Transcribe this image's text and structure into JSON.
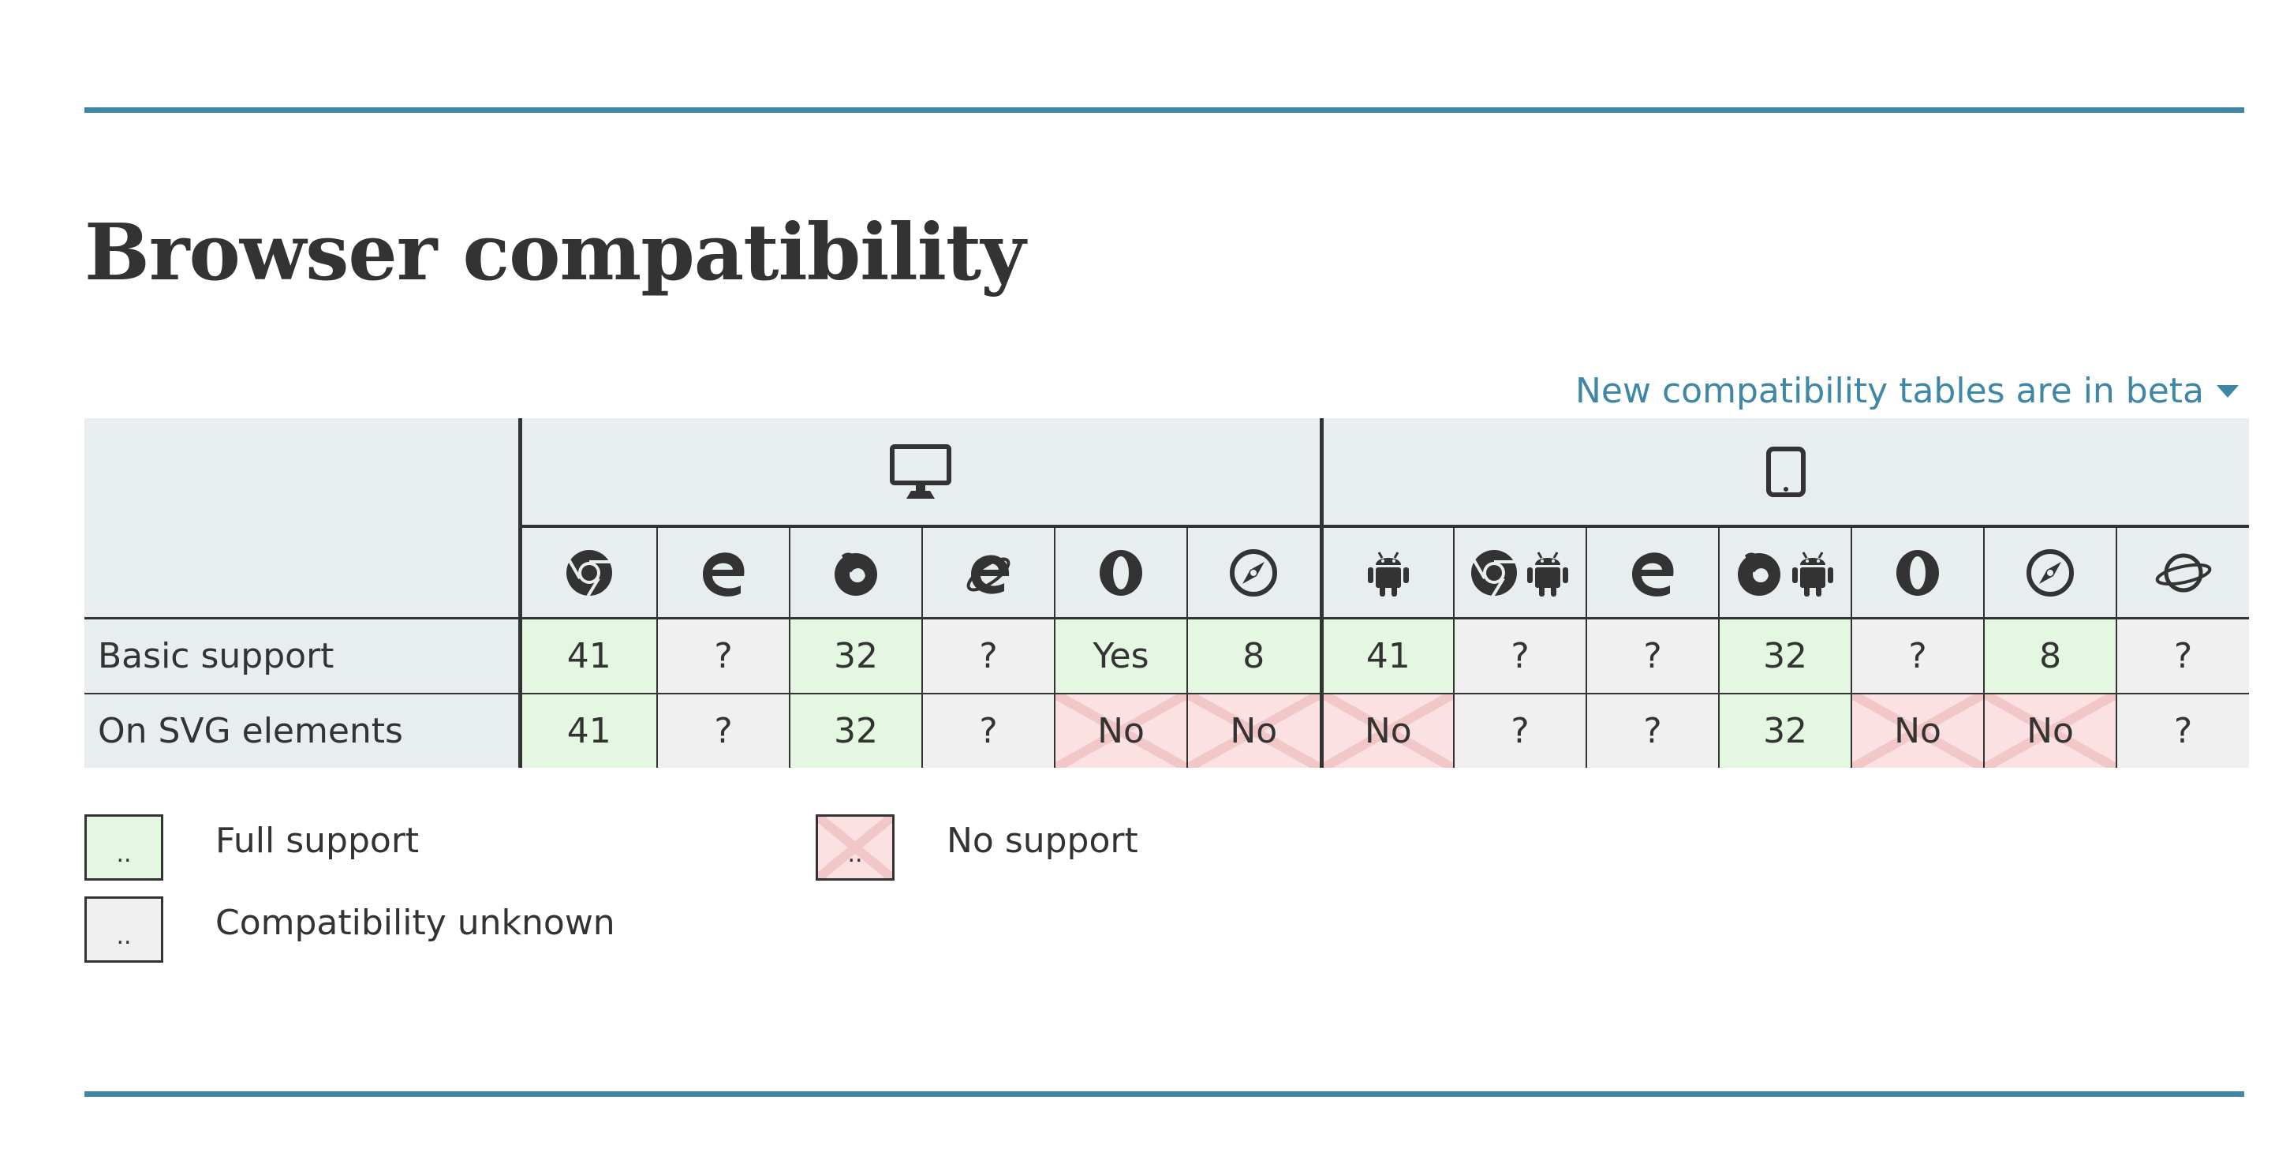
{
  "title": "Browser compatibility",
  "beta_link": "New compatibility tables are in beta",
  "categories": {
    "desktop_icon": "desktop-monitor-icon",
    "mobile_icon": "tablet-icon"
  },
  "browsers": {
    "desktop": [
      "chrome-icon",
      "edge-icon",
      "firefox-icon",
      "internet-explorer-icon",
      "opera-icon",
      "safari-icon"
    ],
    "mobile": [
      "android-icon",
      "chrome-android-icon",
      "edge-mobile-icon",
      "firefox-android-icon",
      "opera-mobile-icon",
      "safari-ios-icon",
      "samsung-internet-icon"
    ]
  },
  "rows": [
    {
      "feature": "Basic support",
      "cells": [
        "41",
        "?",
        "32",
        "?",
        "Yes",
        "8",
        "41",
        "?",
        "?",
        "32",
        "?",
        "8",
        "?"
      ],
      "status": [
        "yes",
        "unknown",
        "yes",
        "unknown",
        "yes",
        "yes",
        "yes",
        "unknown",
        "unknown",
        "yes",
        "unknown",
        "yes",
        "unknown"
      ]
    },
    {
      "feature": "On SVG elements",
      "cells": [
        "41",
        "?",
        "32",
        "?",
        "No",
        "No",
        "No",
        "?",
        "?",
        "32",
        "No",
        "No",
        "?"
      ],
      "status": [
        "yes",
        "unknown",
        "yes",
        "unknown",
        "no",
        "no",
        "no",
        "unknown",
        "unknown",
        "yes",
        "no",
        "no",
        "unknown"
      ]
    }
  ],
  "legend": {
    "full_support": "Full support",
    "no_support": "No support",
    "unknown": "Compatibility unknown",
    "swatch_text": ".."
  },
  "colors": {
    "accent": "#3f87a6",
    "yes": "#e4f8e1",
    "no": "#fbe1e1",
    "unknown": "#f0f0f0",
    "header": "#e8edef"
  }
}
